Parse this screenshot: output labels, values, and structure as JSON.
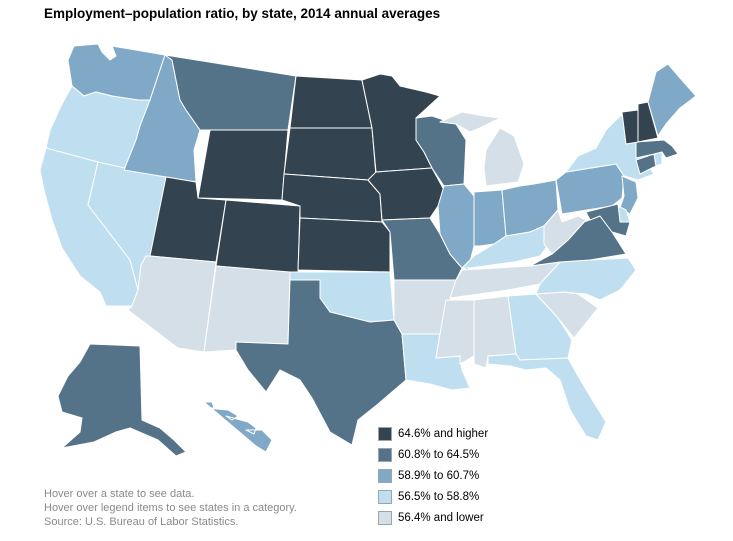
{
  "title": "Employment–population ratio, by state, 2014 annual averages",
  "colors": {
    "c1": "#33434f",
    "c2": "#557388",
    "c3": "#7fa9c6",
    "c4": "#bfdff1",
    "c5": "#d4dfe8"
  },
  "legend": [
    {
      "label": "64.6% and higher",
      "color_key": "c1"
    },
    {
      "label": "60.8% to 64.5%",
      "color_key": "c2"
    },
    {
      "label": "58.9% to 60.7%",
      "color_key": "c3"
    },
    {
      "label": "56.5% to 58.8%",
      "color_key": "c4"
    },
    {
      "label": "56.4% and lower",
      "color_key": "c5"
    }
  ],
  "state_categories": {
    "WA": "c3",
    "OR": "c4",
    "CA": "c4",
    "NV": "c4",
    "ID": "c3",
    "MT": "c2",
    "WY": "c1",
    "UT": "c1",
    "CO": "c1",
    "AZ": "c5",
    "NM": "c5",
    "ND": "c1",
    "SD": "c1",
    "NE": "c1",
    "KS": "c1",
    "OK": "c4",
    "TX": "c2",
    "MN": "c1",
    "IA": "c1",
    "MO": "c2",
    "AR": "c5",
    "LA": "c4",
    "WI": "c2",
    "IL": "c3",
    "MI": "c5",
    "IN": "c3",
    "OH": "c3",
    "KY": "c4",
    "TN": "c5",
    "MS": "c5",
    "AL": "c5",
    "GA": "c4",
    "FL": "c4",
    "SC": "c5",
    "NC": "c4",
    "VA": "c2",
    "WV": "c5",
    "PA": "c3",
    "NY": "c4",
    "NJ": "c3",
    "DE": "c4",
    "MD": "c2",
    "CT": "c2",
    "RI": "c4",
    "MA": "c2",
    "VT": "c1",
    "NH": "c1",
    "ME": "c3",
    "AK": "c2",
    "HI": "c3"
  },
  "notes": [
    "Hover over a state to see data.",
    "Hover over legend items to see states in a category.",
    "Source: U.S. Bureau of Labor Statistics."
  ]
}
